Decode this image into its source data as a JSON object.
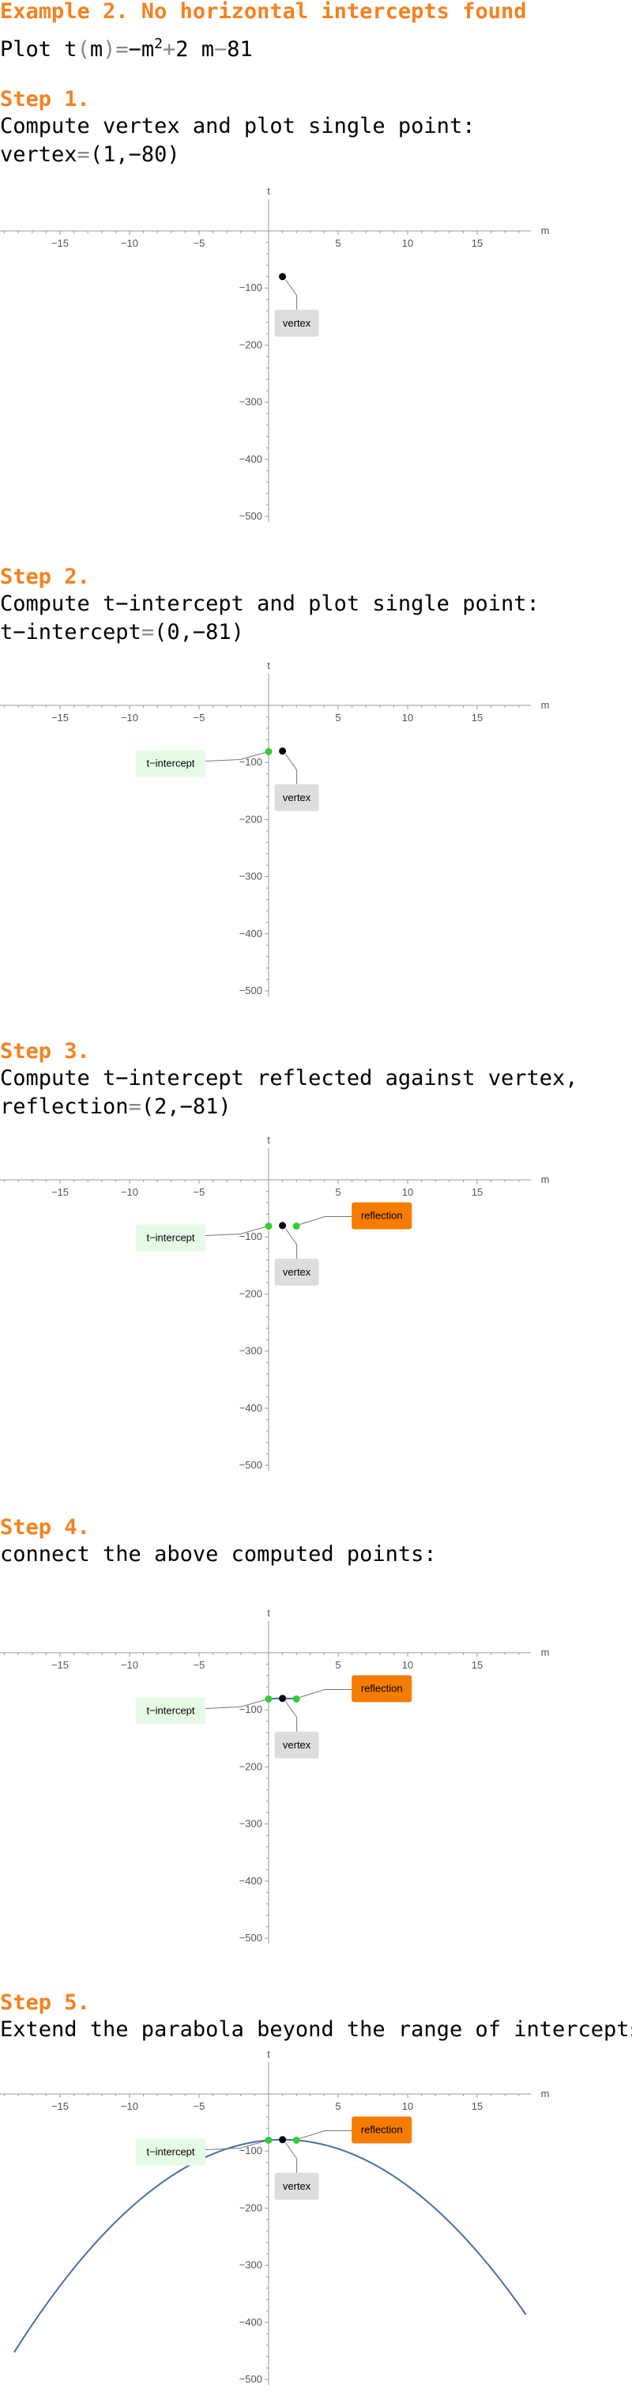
{
  "header": {
    "title": "Example 2. No horizontal intercepts found",
    "plot_prefix": "Plot",
    "func_name": "t",
    "var": "m",
    "rhs_neg": "−m",
    "rhs_exp": "2",
    "rhs_plus": "+",
    "rhs_coef": "2 m",
    "rhs_minus": "−",
    "rhs_const": "81"
  },
  "steps": [
    {
      "heading": "Step 1.",
      "desc": "Compute vertex and plot single point:",
      "sub_label": "vertex",
      "sub_value": "(1,−80)"
    },
    {
      "heading": "Step 2.",
      "desc": "Compute t−intercept and plot single point:",
      "sub_label": "t−intercept",
      "sub_value": "(0,−81)"
    },
    {
      "heading": "Step 3.",
      "desc": "Compute t−intercept reflected against vertex,",
      "sub_label": "reflection",
      "sub_value": "(2,−81)"
    },
    {
      "heading": "Step 4.",
      "desc": "connect the above computed points:",
      "sub_label": "",
      "sub_value": ""
    },
    {
      "heading": "Step 5.",
      "desc": "Extend the parabola beyond the range of intercepts",
      "sub_label": "",
      "sub_value": ""
    }
  ],
  "colors": {
    "accent": "#f5821f",
    "vertex_point": "#000000",
    "intercept_point": "#33cc33",
    "curve": "#4a6fa5",
    "vertex_label_bg": "#dddddd",
    "intercept_label_bg": "#e6fbe6",
    "reflection_label_bg": "#f57c00"
  },
  "chart_data": [
    {
      "type": "scatter",
      "xlabel": "m",
      "ylabel": "t",
      "xlim": [
        -19,
        19
      ],
      "ylim": [
        -510,
        0
      ],
      "x_ticks": [
        -15,
        -10,
        -5,
        5,
        10,
        15
      ],
      "y_ticks": [
        -100,
        -200,
        -300,
        -400,
        -500
      ],
      "points": [
        {
          "x": 1,
          "y": -80,
          "kind": "vertex",
          "label": "vertex"
        }
      ],
      "curve": null
    },
    {
      "type": "scatter",
      "xlabel": "m",
      "ylabel": "t",
      "xlim": [
        -19,
        19
      ],
      "ylim": [
        -510,
        0
      ],
      "x_ticks": [
        -15,
        -10,
        -5,
        5,
        10,
        15
      ],
      "y_ticks": [
        -100,
        -200,
        -300,
        -400,
        -500
      ],
      "points": [
        {
          "x": 1,
          "y": -80,
          "kind": "vertex",
          "label": "vertex"
        },
        {
          "x": 0,
          "y": -81,
          "kind": "intercept",
          "label": "t−intercept"
        }
      ],
      "curve": null
    },
    {
      "type": "scatter",
      "xlabel": "m",
      "ylabel": "t",
      "xlim": [
        -19,
        19
      ],
      "ylim": [
        -510,
        0
      ],
      "x_ticks": [
        -15,
        -10,
        -5,
        5,
        10,
        15
      ],
      "y_ticks": [
        -100,
        -200,
        -300,
        -400,
        -500
      ],
      "points": [
        {
          "x": 1,
          "y": -80,
          "kind": "vertex",
          "label": "vertex"
        },
        {
          "x": 0,
          "y": -81,
          "kind": "intercept",
          "label": "t−intercept"
        },
        {
          "x": 2,
          "y": -81,
          "kind": "reflection",
          "label": "reflection"
        }
      ],
      "curve": null
    },
    {
      "type": "line",
      "xlabel": "m",
      "ylabel": "t",
      "xlim": [
        -19,
        19
      ],
      "ylim": [
        -510,
        0
      ],
      "x_ticks": [
        -15,
        -10,
        -5,
        5,
        10,
        15
      ],
      "y_ticks": [
        -100,
        -200,
        -300,
        -400,
        -500
      ],
      "points": [
        {
          "x": 1,
          "y": -80,
          "kind": "vertex",
          "label": "vertex"
        },
        {
          "x": 0,
          "y": -81,
          "kind": "intercept",
          "label": "t−intercept"
        },
        {
          "x": 2,
          "y": -81,
          "kind": "reflection",
          "label": "reflection"
        }
      ],
      "curve": {
        "from": 0,
        "to": 2
      }
    },
    {
      "type": "line",
      "xlabel": "m",
      "ylabel": "t",
      "xlim": [
        -19,
        19
      ],
      "ylim": [
        -510,
        0
      ],
      "x_ticks": [
        -15,
        -10,
        -5,
        5,
        10,
        15
      ],
      "y_ticks": [
        -100,
        -200,
        -300,
        -400,
        -500
      ],
      "points": [
        {
          "x": 1,
          "y": -80,
          "kind": "vertex",
          "label": "vertex"
        },
        {
          "x": 0,
          "y": -81,
          "kind": "intercept",
          "label": "t−intercept"
        },
        {
          "x": 2,
          "y": -81,
          "kind": "reflection",
          "label": "reflection"
        }
      ],
      "curve": {
        "from": -18.3,
        "to": 18.5
      }
    }
  ]
}
